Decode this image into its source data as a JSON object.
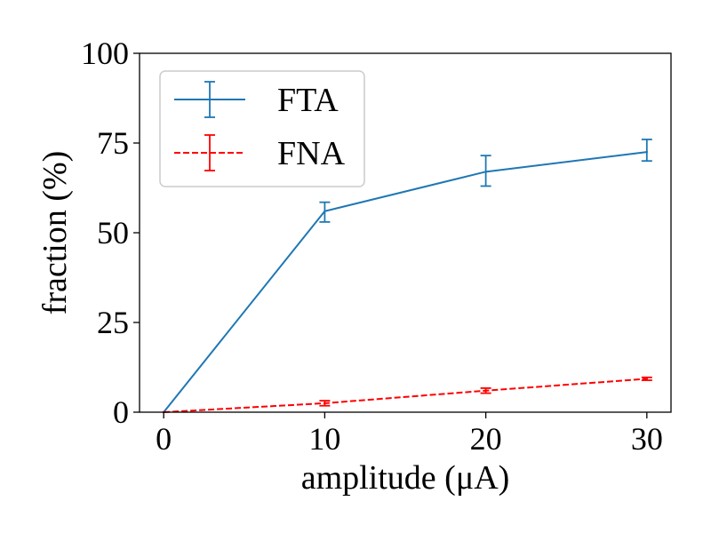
{
  "chart_data": {
    "type": "line",
    "xlabel": "amplitude (μA)",
    "ylabel": "fraction (%)",
    "xlim": [
      -1.5,
      31.5
    ],
    "ylim": [
      0,
      100
    ],
    "xticks": [
      0,
      10,
      20,
      30
    ],
    "yticks": [
      0,
      25,
      50,
      75,
      100
    ],
    "grid": false,
    "legend_position": "top-left",
    "series": [
      {
        "name": "FTA",
        "color": "#1f77b4",
        "linestyle": "solid",
        "x": [
          0,
          10,
          20,
          30
        ],
        "y": [
          0,
          56,
          67,
          72.5
        ],
        "err_low": [
          0,
          3,
          4,
          2.5
        ],
        "err_high": [
          0,
          2.5,
          4.5,
          3.5
        ]
      },
      {
        "name": "FNA",
        "color": "#ff0000",
        "linestyle": "dashed",
        "x": [
          0,
          10,
          20,
          30
        ],
        "y": [
          0,
          2.5,
          6,
          9.3
        ],
        "err_low": [
          0,
          0.7,
          0.7,
          0.4
        ],
        "err_high": [
          0,
          0.7,
          0.7,
          0.4
        ]
      }
    ]
  }
}
